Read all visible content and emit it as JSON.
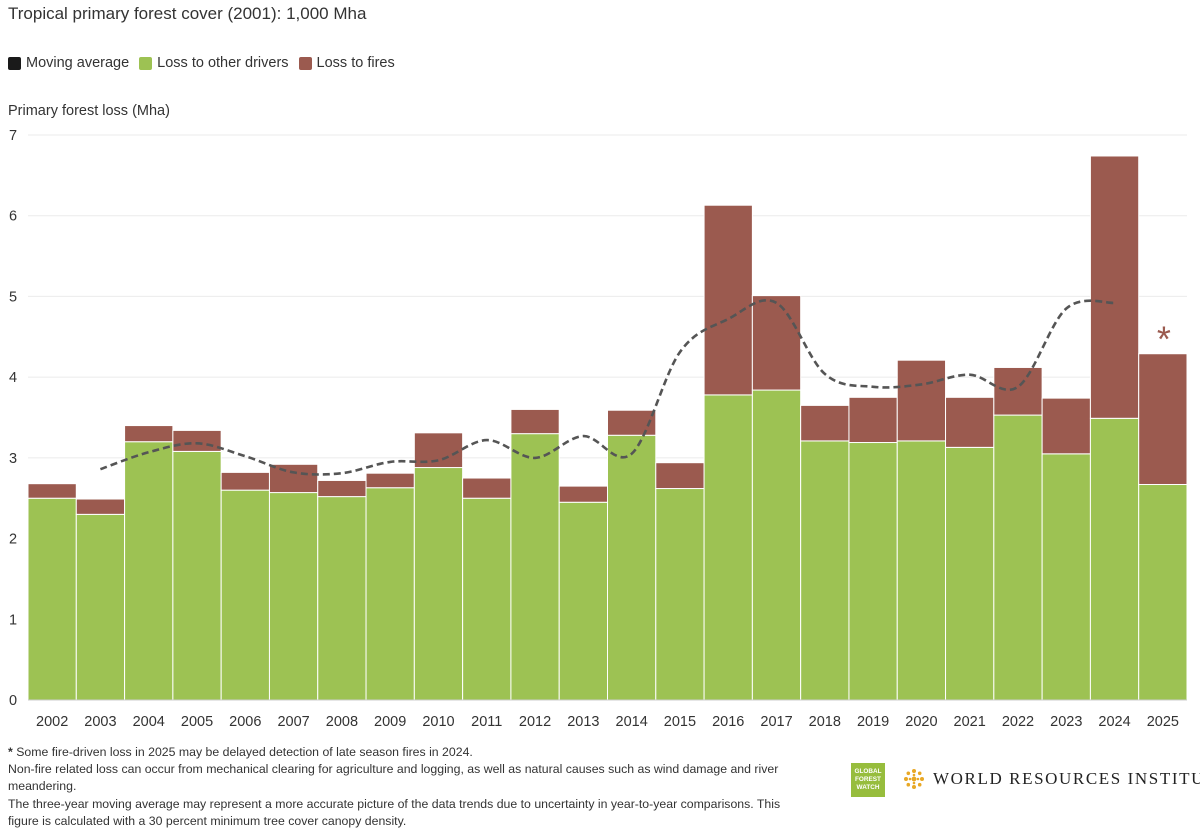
{
  "header": {
    "title": "Tropical primary forest cover (2001): 1,000 Mha"
  },
  "legend": {
    "items": [
      {
        "label": "Moving average",
        "color": "#1a1a1a"
      },
      {
        "label": "Loss to other drivers",
        "color": "#9dc253"
      },
      {
        "label": "Loss to fires",
        "color": "#9b5a4f"
      }
    ]
  },
  "chart_data": {
    "type": "bar",
    "stacked": true,
    "ylabel": "Primary forest loss (Mha)",
    "ylim": [
      0,
      7
    ],
    "yticks": [
      "0",
      "1",
      "2",
      "3",
      "4",
      "5",
      "6",
      "7"
    ],
    "grid": true,
    "categories": [
      "2002",
      "2003",
      "2004",
      "2005",
      "2006",
      "2007",
      "2008",
      "2009",
      "2010",
      "2011",
      "2012",
      "2013",
      "2014",
      "2015",
      "2016",
      "2017",
      "2018",
      "2019",
      "2020",
      "2021",
      "2022",
      "2023",
      "2024",
      "2025"
    ],
    "series": [
      {
        "name": "Loss to other drivers",
        "color": "#9dc253",
        "values": [
          2.5,
          2.3,
          3.2,
          3.08,
          2.6,
          2.57,
          2.52,
          2.63,
          2.88,
          2.5,
          3.3,
          2.45,
          3.28,
          2.62,
          3.78,
          3.84,
          3.21,
          3.19,
          3.21,
          3.13,
          3.53,
          3.05,
          3.49,
          2.67
        ]
      },
      {
        "name": "Loss to fires",
        "color": "#9b5a4f",
        "values": [
          0.18,
          0.19,
          0.2,
          0.26,
          0.22,
          0.35,
          0.2,
          0.18,
          0.43,
          0.25,
          0.3,
          0.2,
          0.31,
          0.32,
          2.35,
          1.17,
          0.44,
          0.56,
          1.0,
          0.62,
          0.59,
          0.69,
          3.25,
          1.62
        ]
      },
      {
        "name": "Moving average",
        "type": "line",
        "color": "#555555",
        "dashed": true,
        "x": [
          "2003",
          "2004",
          "2005",
          "2006",
          "2007",
          "2008",
          "2009",
          "2010",
          "2011",
          "2012",
          "2013",
          "2014",
          "2015",
          "2016",
          "2017",
          "2018",
          "2019",
          "2020",
          "2021",
          "2022",
          "2023",
          "2024"
        ],
        "values": [
          2.86,
          3.07,
          3.18,
          3.02,
          2.82,
          2.81,
          2.95,
          2.97,
          3.22,
          3.0,
          3.27,
          3.05,
          4.31,
          4.72,
          4.92,
          4.04,
          3.88,
          3.91,
          4.03,
          3.88,
          4.85,
          4.92
        ]
      }
    ],
    "annotations": [
      {
        "x": "2025",
        "text": "*"
      }
    ]
  },
  "footer": {
    "note_mark": "*",
    "note_text": " Some fire-driven loss in 2025 may be delayed detection of late season fires in 2024.",
    "line2": "Non-fire related loss can occur from mechanical clearing for agriculture and logging, as well as natural causes such as wind damage and river meandering.",
    "line3": "The three-year moving average may represent a more accurate picture of the data trends due to uncertainty in year-to-year comparisons. This figure is calculated with a 30 percent minimum tree cover canopy density."
  },
  "branding": {
    "gfw_line1": "GLOBAL",
    "gfw_line2": "FOREST",
    "gfw_line3": "WATCH",
    "wri": "WORLD RESOURCES INSTITUTE",
    "gfw_color": "#97bd3d",
    "wri_icon_color": "#e8a825"
  }
}
